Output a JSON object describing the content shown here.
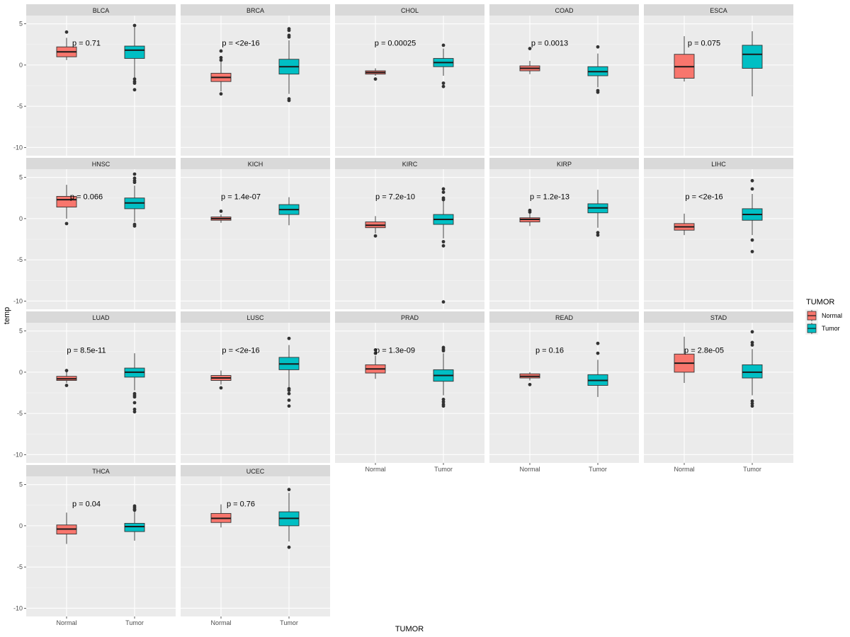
{
  "chart_data": {
    "type": "boxplot",
    "layout": "faceted grid, 5 columns x 4 rows",
    "xlabel": "TUMOR",
    "ylabel": "temp",
    "ylim": [
      -11,
      6
    ],
    "yticks": [
      5,
      0,
      -5,
      -10
    ],
    "categories": [
      "Normal",
      "Tumor"
    ],
    "legend": {
      "title": "TUMOR",
      "position": "right",
      "entries": [
        {
          "label": "Normal",
          "color": "#F8766D"
        },
        {
          "label": "Tumor",
          "color": "#00BFC4"
        }
      ]
    },
    "facets": [
      {
        "name": "BLCA",
        "p": "p = 0.71",
        "normal": {
          "min": 0.6,
          "q1": 1.0,
          "median": 1.6,
          "q3": 2.2,
          "max": 3.3,
          "outliers": [
            4.0
          ]
        },
        "tumor": {
          "min": -1.5,
          "q1": 0.8,
          "median": 1.8,
          "q3": 2.3,
          "max": 4.6,
          "outliers": [
            4.8,
            -1.7,
            -2.0,
            -2.2,
            -3.0
          ]
        }
      },
      {
        "name": "BRCA",
        "p": "p = <2e-16",
        "normal": {
          "min": -3.2,
          "q1": -2.0,
          "median": -1.5,
          "q3": -1.0,
          "max": 0.4,
          "outliers": [
            1.7,
            0.9,
            0.6,
            -3.5
          ]
        },
        "tumor": {
          "min": -3.5,
          "q1": -1.1,
          "median": -0.2,
          "q3": 0.7,
          "max": 3.0,
          "outliers": [
            4.4,
            4.2,
            3.6,
            3.4,
            -4.1,
            -4.3
          ]
        }
      },
      {
        "name": "CHOL",
        "p": "p = 0.00025",
        "normal": {
          "min": -1.3,
          "q1": -1.1,
          "median": -0.9,
          "q3": -0.7,
          "max": -0.4,
          "outliers": [
            -1.7
          ]
        },
        "tumor": {
          "min": -1.3,
          "q1": -0.2,
          "median": 0.3,
          "q3": 0.8,
          "max": 2.0,
          "outliers": [
            2.4,
            -2.2,
            -2.6
          ]
        }
      },
      {
        "name": "COAD",
        "p": "p = 0.0013",
        "normal": {
          "min": -1.1,
          "q1": -0.7,
          "median": -0.4,
          "q3": -0.1,
          "max": 0.5,
          "outliers": [
            2.0
          ]
        },
        "tumor": {
          "min": -2.7,
          "q1": -1.3,
          "median": -0.8,
          "q3": -0.2,
          "max": 1.4,
          "outliers": [
            2.2,
            -3.1,
            -3.3
          ]
        }
      },
      {
        "name": "ESCA",
        "p": "p = 0.075",
        "normal": {
          "min": -2.0,
          "q1": -1.6,
          "median": -0.2,
          "q3": 1.3,
          "max": 3.5,
          "outliers": []
        },
        "tumor": {
          "min": -3.8,
          "q1": -0.4,
          "median": 1.3,
          "q3": 2.4,
          "max": 4.1,
          "outliers": []
        }
      },
      {
        "name": "HNSC",
        "p": "p = 0.066",
        "normal": {
          "min": 0.0,
          "q1": 1.4,
          "median": 2.3,
          "q3": 2.7,
          "max": 4.1,
          "outliers": [
            -0.6
          ]
        },
        "tumor": {
          "min": -0.4,
          "q1": 1.2,
          "median": 1.9,
          "q3": 2.5,
          "max": 4.0,
          "outliers": [
            5.4,
            4.9,
            4.6,
            4.4,
            -0.7,
            -0.9
          ]
        }
      },
      {
        "name": "KICH",
        "p": "p = 1.4e-07",
        "normal": {
          "min": -0.5,
          "q1": -0.2,
          "median": 0.0,
          "q3": 0.2,
          "max": 0.5,
          "outliers": [
            0.9
          ]
        },
        "tumor": {
          "min": -0.8,
          "q1": 0.5,
          "median": 1.1,
          "q3": 1.7,
          "max": 2.6,
          "outliers": []
        }
      },
      {
        "name": "KIRC",
        "p": "p = 7.2e-10",
        "normal": {
          "min": -1.8,
          "q1": -1.1,
          "median": -0.8,
          "q3": -0.4,
          "max": 0.3,
          "outliers": [
            -2.1
          ]
        },
        "tumor": {
          "min": -2.4,
          "q1": -0.7,
          "median": -0.1,
          "q3": 0.5,
          "max": 2.2,
          "outliers": [
            3.6,
            3.2,
            2.5,
            2.3,
            -2.8,
            -3.3,
            -10.1
          ]
        }
      },
      {
        "name": "KIRP",
        "p": "p = 1.2e-13",
        "normal": {
          "min": -0.9,
          "q1": -0.4,
          "median": -0.1,
          "q3": 0.1,
          "max": 0.6,
          "outliers": [
            1.0,
            0.8
          ]
        },
        "tumor": {
          "min": -1.1,
          "q1": 0.7,
          "median": 1.3,
          "q3": 1.8,
          "max": 3.5,
          "outliers": [
            -1.7,
            -2.0
          ]
        }
      },
      {
        "name": "LIHC",
        "p": "p = <2e-16",
        "normal": {
          "min": -2.0,
          "q1": -1.4,
          "median": -1.0,
          "q3": -0.6,
          "max": 0.6,
          "outliers": []
        },
        "tumor": {
          "min": -2.0,
          "q1": -0.2,
          "median": 0.5,
          "q3": 1.2,
          "max": 3.0,
          "outliers": [
            4.6,
            3.6,
            -2.6,
            -4.0
          ]
        }
      },
      {
        "name": "LUAD",
        "p": "p = 8.5e-11",
        "normal": {
          "min": -1.3,
          "q1": -1.0,
          "median": -0.8,
          "q3": -0.5,
          "max": 0.0,
          "outliers": [
            0.2,
            -1.6
          ]
        },
        "tumor": {
          "min": -2.2,
          "q1": -0.6,
          "median": 0.0,
          "q3": 0.5,
          "max": 2.3,
          "outliers": [
            -2.6,
            -2.8,
            -3.0,
            -3.7,
            -4.5,
            -4.8
          ]
        }
      },
      {
        "name": "LUSC",
        "p": "p = <2e-16",
        "normal": {
          "min": -1.5,
          "q1": -1.0,
          "median": -0.7,
          "q3": -0.4,
          "max": 0.2,
          "outliers": [
            -1.9
          ]
        },
        "tumor": {
          "min": -1.8,
          "q1": 0.3,
          "median": 1.0,
          "q3": 1.8,
          "max": 3.3,
          "outliers": [
            4.1,
            -2.0,
            -2.2,
            -2.6,
            -3.4,
            -4.1
          ]
        }
      },
      {
        "name": "PRAD",
        "p": "p = 1.3e-09",
        "normal": {
          "min": -0.8,
          "q1": -0.1,
          "median": 0.4,
          "q3": 0.9,
          "max": 2.0,
          "outliers": [
            2.7,
            2.3
          ]
        },
        "tumor": {
          "min": -2.8,
          "q1": -1.1,
          "median": -0.4,
          "q3": 0.3,
          "max": 2.3,
          "outliers": [
            3.0,
            2.8,
            2.6,
            -3.3,
            -3.6,
            -3.9,
            -4.1
          ]
        }
      },
      {
        "name": "READ",
        "p": "p = 0.16",
        "normal": {
          "min": -1.0,
          "q1": -0.7,
          "median": -0.5,
          "q3": -0.2,
          "max": 0.0,
          "outliers": [
            -1.5
          ]
        },
        "tumor": {
          "min": -3.0,
          "q1": -1.6,
          "median": -1.0,
          "q3": -0.3,
          "max": 1.5,
          "outliers": [
            3.5,
            2.3
          ]
        }
      },
      {
        "name": "STAD",
        "p": "p = 2.8e-05",
        "normal": {
          "min": -1.3,
          "q1": 0.0,
          "median": 1.1,
          "q3": 2.2,
          "max": 4.3,
          "outliers": []
        },
        "tumor": {
          "min": -2.8,
          "q1": -0.7,
          "median": 0.0,
          "q3": 0.9,
          "max": 2.8,
          "outliers": [
            4.9,
            3.6,
            3.3,
            -3.5,
            -3.8,
            -4.1
          ]
        }
      },
      {
        "name": "THCA",
        "p": "p = 0.04",
        "normal": {
          "min": -2.2,
          "q1": -1.0,
          "median": -0.4,
          "q3": 0.1,
          "max": 1.6,
          "outliers": []
        },
        "tumor": {
          "min": -1.8,
          "q1": -0.7,
          "median": -0.1,
          "q3": 0.3,
          "max": 1.7,
          "outliers": [
            2.4,
            2.2,
            2.0,
            1.9
          ]
        }
      },
      {
        "name": "UCEC",
        "p": "p = 0.76",
        "normal": {
          "min": -0.2,
          "q1": 0.4,
          "median": 0.9,
          "q3": 1.5,
          "max": 2.6,
          "outliers": []
        },
        "tumor": {
          "min": -1.9,
          "q1": 0.0,
          "median": 0.9,
          "q3": 1.7,
          "max": 4.0,
          "outliers": [
            4.4,
            -2.6
          ]
        }
      }
    ]
  }
}
